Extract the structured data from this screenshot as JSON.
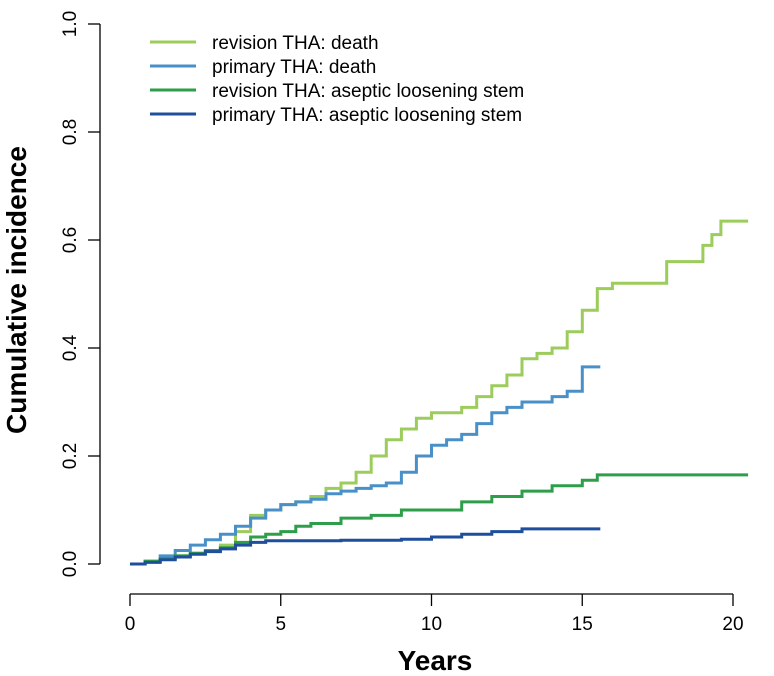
{
  "chart_data": {
    "type": "line",
    "step": true,
    "title": "",
    "xlabel": "Years",
    "ylabel": "Cumulative incidence",
    "xlim": [
      0,
      20.5
    ],
    "ylim": [
      0,
      1.0
    ],
    "xticks": [
      "0",
      "5",
      "10",
      "15",
      "20"
    ],
    "yticks": [
      "0.0",
      "0.2",
      "0.4",
      "0.6",
      "0.8",
      "1.0"
    ],
    "grid": false,
    "legend_position": "top-left",
    "series": [
      {
        "name": "revision THA: death",
        "color": "#9ccc5c",
        "x": [
          0,
          0.5,
          1.0,
          1.5,
          2.0,
          2.5,
          3.0,
          3.5,
          4.0,
          4.5,
          5.0,
          5.5,
          6.0,
          6.5,
          7.0,
          7.5,
          8.0,
          8.5,
          9.0,
          9.5,
          10.0,
          11.0,
          11.5,
          12.0,
          12.5,
          13.0,
          13.5,
          14.0,
          14.5,
          15.0,
          15.5,
          16.0,
          17.0,
          17.8,
          18.5,
          19.0,
          19.3,
          19.6,
          20.0,
          20.5
        ],
        "y": [
          0,
          0.005,
          0.01,
          0.015,
          0.02,
          0.025,
          0.035,
          0.06,
          0.09,
          0.1,
          0.11,
          0.115,
          0.125,
          0.14,
          0.15,
          0.17,
          0.2,
          0.23,
          0.25,
          0.27,
          0.28,
          0.29,
          0.31,
          0.33,
          0.35,
          0.38,
          0.39,
          0.4,
          0.43,
          0.47,
          0.51,
          0.52,
          0.52,
          0.56,
          0.56,
          0.59,
          0.61,
          0.635,
          0.635,
          0.635
        ]
      },
      {
        "name": "primary THA: death",
        "color": "#4a90c8",
        "x": [
          0,
          0.5,
          1.0,
          1.5,
          2.0,
          2.5,
          3.0,
          3.5,
          4.0,
          4.5,
          5.0,
          5.5,
          6.0,
          6.5,
          7.0,
          7.5,
          8.0,
          8.5,
          9.0,
          9.5,
          10.0,
          10.5,
          11.0,
          11.5,
          12.0,
          12.5,
          13.0,
          13.5,
          14.0,
          14.5,
          15.0,
          15.6
        ],
        "y": [
          0,
          0.005,
          0.015,
          0.025,
          0.035,
          0.045,
          0.055,
          0.07,
          0.085,
          0.1,
          0.11,
          0.115,
          0.12,
          0.13,
          0.135,
          0.14,
          0.145,
          0.15,
          0.17,
          0.2,
          0.22,
          0.23,
          0.24,
          0.26,
          0.28,
          0.29,
          0.3,
          0.3,
          0.31,
          0.32,
          0.365,
          0.365
        ]
      },
      {
        "name": "revision THA: aseptic loosening stem",
        "color": "#2e9e4a",
        "x": [
          0,
          0.5,
          1.0,
          1.5,
          2.0,
          2.5,
          3.0,
          3.5,
          4.0,
          4.5,
          5.0,
          5.5,
          6.0,
          7.0,
          8.0,
          9.0,
          10.0,
          11.0,
          12.0,
          13.0,
          14.0,
          15.0,
          15.5,
          20.5
        ],
        "y": [
          0,
          0.005,
          0.01,
          0.015,
          0.02,
          0.025,
          0.03,
          0.04,
          0.05,
          0.055,
          0.06,
          0.07,
          0.075,
          0.085,
          0.09,
          0.1,
          0.1,
          0.115,
          0.125,
          0.135,
          0.145,
          0.155,
          0.165,
          0.165
        ]
      },
      {
        "name": "primary THA: aseptic loosening stem",
        "color": "#1f4f9c",
        "x": [
          0,
          0.5,
          1.0,
          1.5,
          2.0,
          2.5,
          3.0,
          3.5,
          4.0,
          4.5,
          7.0,
          9.0,
          10.0,
          11.0,
          12.0,
          13.0,
          15.6
        ],
        "y": [
          0,
          0.003,
          0.008,
          0.013,
          0.018,
          0.023,
          0.028,
          0.035,
          0.04,
          0.043,
          0.044,
          0.046,
          0.05,
          0.055,
          0.06,
          0.065,
          0.065
        ]
      }
    ]
  }
}
